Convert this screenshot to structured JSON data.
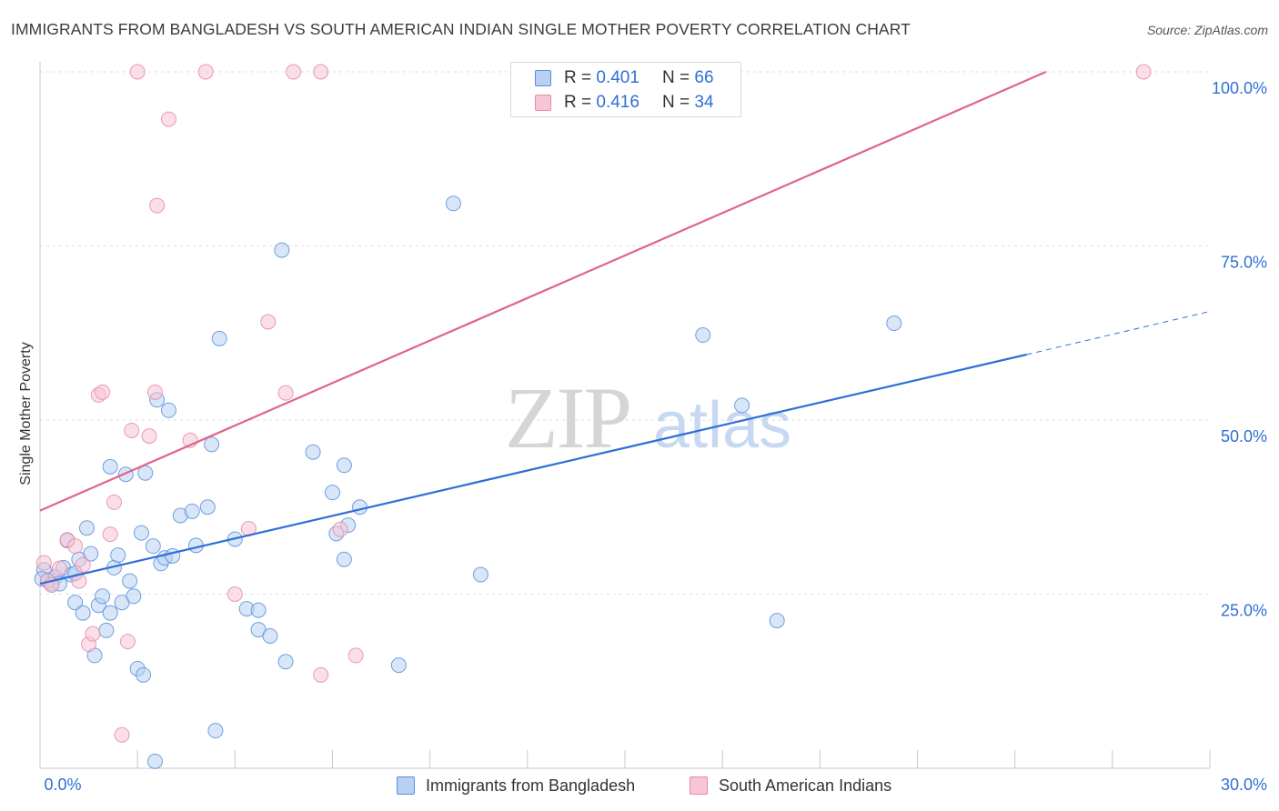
{
  "title": "IMMIGRANTS FROM BANGLADESH VS SOUTH AMERICAN INDIAN SINGLE MOTHER POVERTY CORRELATION CHART",
  "source": "Source: ZipAtlas.com",
  "watermark": {
    "left": "ZIP",
    "right": "atlas"
  },
  "colors": {
    "blue_fill": "#b8d1f3",
    "blue_stroke": "#5b8fdb",
    "blue_line": "#2f6fd6",
    "pink_fill": "#f8c5d5",
    "pink_stroke": "#e68aa8",
    "pink_line": "#e0638c",
    "value_text": "#2f6fd6",
    "grid": "#dddddd"
  },
  "legend": [
    {
      "r_label": "R = ",
      "r_value": "0.401",
      "n_label": "N = ",
      "n_value": "66",
      "series": "Immigrants from Bangladesh"
    },
    {
      "r_label": "R = ",
      "r_value": "0.416",
      "n_label": "N = ",
      "n_value": "34",
      "series": "South American Indians"
    }
  ],
  "chart_data": {
    "type": "scatter",
    "title": "IMMIGRANTS FROM BANGLADESH VS SOUTH AMERICAN INDIAN SINGLE MOTHER POVERTY CORRELATION CHART",
    "xlabel": "",
    "ylabel": "Single Mother Poverty",
    "xlim": [
      0,
      30
    ],
    "ylim": [
      0,
      100
    ],
    "x_tick_labels": [
      {
        "value": 0,
        "label": "0.0%"
      },
      {
        "value": 30,
        "label": "30.0%"
      }
    ],
    "y_tick_labels": [
      {
        "value": 25,
        "label": "25.0%"
      },
      {
        "value": 50,
        "label": "50.0%"
      },
      {
        "value": 75,
        "label": "75.0%"
      },
      {
        "value": 100,
        "label": "100.0%"
      }
    ],
    "grid": true,
    "legend_position": "top-center",
    "series": [
      {
        "name": "Immigrants from Bangladesh",
        "color": "#5b8fdb",
        "trend": {
          "x": [
            0,
            25.3
          ],
          "y": [
            26.5,
            59.4
          ],
          "extend_dashed_to_x": 30,
          "extend_dashed_y": 65.6
        },
        "points": [
          [
            0.1,
            28.5
          ],
          [
            0.2,
            27.0
          ],
          [
            0.3,
            26.5
          ],
          [
            0.4,
            27.5
          ],
          [
            0.5,
            26.5
          ],
          [
            0.6,
            28.8
          ],
          [
            0.7,
            32.7
          ],
          [
            0.8,
            27.8
          ],
          [
            0.9,
            28.0
          ],
          [
            0.9,
            23.8
          ],
          [
            1.0,
            30.0
          ],
          [
            1.1,
            22.3
          ],
          [
            1.2,
            34.5
          ],
          [
            1.3,
            30.8
          ],
          [
            1.4,
            16.2
          ],
          [
            1.5,
            23.4
          ],
          [
            1.6,
            24.7
          ],
          [
            1.7,
            19.8
          ],
          [
            1.8,
            43.3
          ],
          [
            1.8,
            22.3
          ],
          [
            1.9,
            28.8
          ],
          [
            2.0,
            30.6
          ],
          [
            2.1,
            23.8
          ],
          [
            2.2,
            42.2
          ],
          [
            2.3,
            26.9
          ],
          [
            2.4,
            24.7
          ],
          [
            2.5,
            14.3
          ],
          [
            2.6,
            33.8
          ],
          [
            2.65,
            13.4
          ],
          [
            2.7,
            42.4
          ],
          [
            2.9,
            31.9
          ],
          [
            2.95,
            1.0
          ],
          [
            3.0,
            52.9
          ],
          [
            3.1,
            29.4
          ],
          [
            3.2,
            30.2
          ],
          [
            3.3,
            51.4
          ],
          [
            3.4,
            30.5
          ],
          [
            3.6,
            36.3
          ],
          [
            3.9,
            36.9
          ],
          [
            4.0,
            32.0
          ],
          [
            4.3,
            37.5
          ],
          [
            4.4,
            46.5
          ],
          [
            4.5,
            5.4
          ],
          [
            4.6,
            61.7
          ],
          [
            5.0,
            32.9
          ],
          [
            5.3,
            22.9
          ],
          [
            5.6,
            22.7
          ],
          [
            5.6,
            19.9
          ],
          [
            5.9,
            19.0
          ],
          [
            6.2,
            74.4
          ],
          [
            6.3,
            15.3
          ],
          [
            7.0,
            45.4
          ],
          [
            7.5,
            39.6
          ],
          [
            7.6,
            33.7
          ],
          [
            7.8,
            43.5
          ],
          [
            7.8,
            30.0
          ],
          [
            7.9,
            34.9
          ],
          [
            8.2,
            37.5
          ],
          [
            9.2,
            14.8
          ],
          [
            10.6,
            81.1
          ],
          [
            11.3,
            27.8
          ],
          [
            17.0,
            62.2
          ],
          [
            18.0,
            52.1
          ],
          [
            18.9,
            21.2
          ],
          [
            21.9,
            63.9
          ],
          [
            0.05,
            27.2
          ]
        ]
      },
      {
        "name": "South American Indians",
        "color": "#e68aa8",
        "trend": {
          "x": [
            0,
            25.8
          ],
          "y": [
            37.0,
            100.0
          ]
        },
        "points": [
          [
            0.1,
            29.5
          ],
          [
            0.2,
            26.9
          ],
          [
            0.3,
            26.3
          ],
          [
            0.5,
            28.7
          ],
          [
            0.7,
            32.8
          ],
          [
            0.9,
            31.9
          ],
          [
            1.0,
            26.9
          ],
          [
            1.1,
            29.2
          ],
          [
            1.25,
            17.8
          ],
          [
            1.35,
            19.3
          ],
          [
            1.5,
            53.6
          ],
          [
            1.6,
            54.0
          ],
          [
            1.8,
            33.6
          ],
          [
            1.9,
            38.2
          ],
          [
            2.1,
            4.8
          ],
          [
            2.25,
            18.2
          ],
          [
            2.35,
            48.5
          ],
          [
            2.5,
            100.0
          ],
          [
            2.8,
            47.7
          ],
          [
            2.95,
            54.0
          ],
          [
            3.0,
            80.8
          ],
          [
            3.3,
            93.2
          ],
          [
            3.85,
            47.1
          ],
          [
            4.25,
            100.0
          ],
          [
            5.0,
            25.0
          ],
          [
            5.35,
            34.4
          ],
          [
            5.85,
            64.1
          ],
          [
            6.3,
            53.9
          ],
          [
            6.5,
            100.0
          ],
          [
            7.2,
            100.0
          ],
          [
            7.2,
            13.4
          ],
          [
            7.7,
            34.3
          ],
          [
            8.1,
            16.2
          ],
          [
            28.3,
            100.0
          ]
        ]
      }
    ]
  }
}
